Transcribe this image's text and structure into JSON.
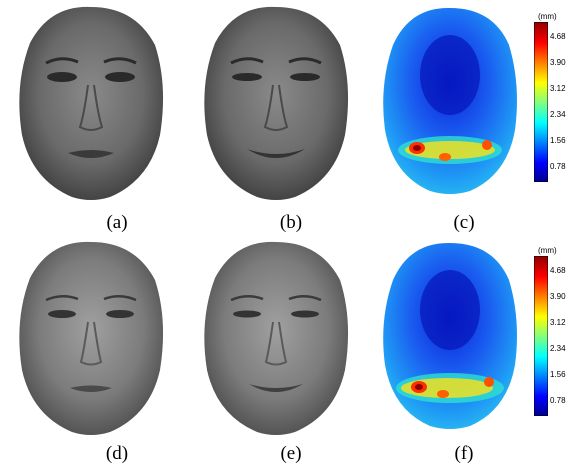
{
  "labels": [
    "(a)",
    "(b)",
    "(c)",
    "(d)",
    "(e)",
    "(f)"
  ],
  "colorbar": {
    "unit": "(mm)",
    "ticks": [
      "4.68",
      "3.90",
      "3.12",
      "2.34",
      "1.56",
      "0.78"
    ]
  },
  "colors": {
    "face_gray_dark": "#3a3a3a",
    "face_gray_light": "#8a8a8a",
    "heat_low": "#00008f",
    "heat_high": "#8f0000"
  }
}
